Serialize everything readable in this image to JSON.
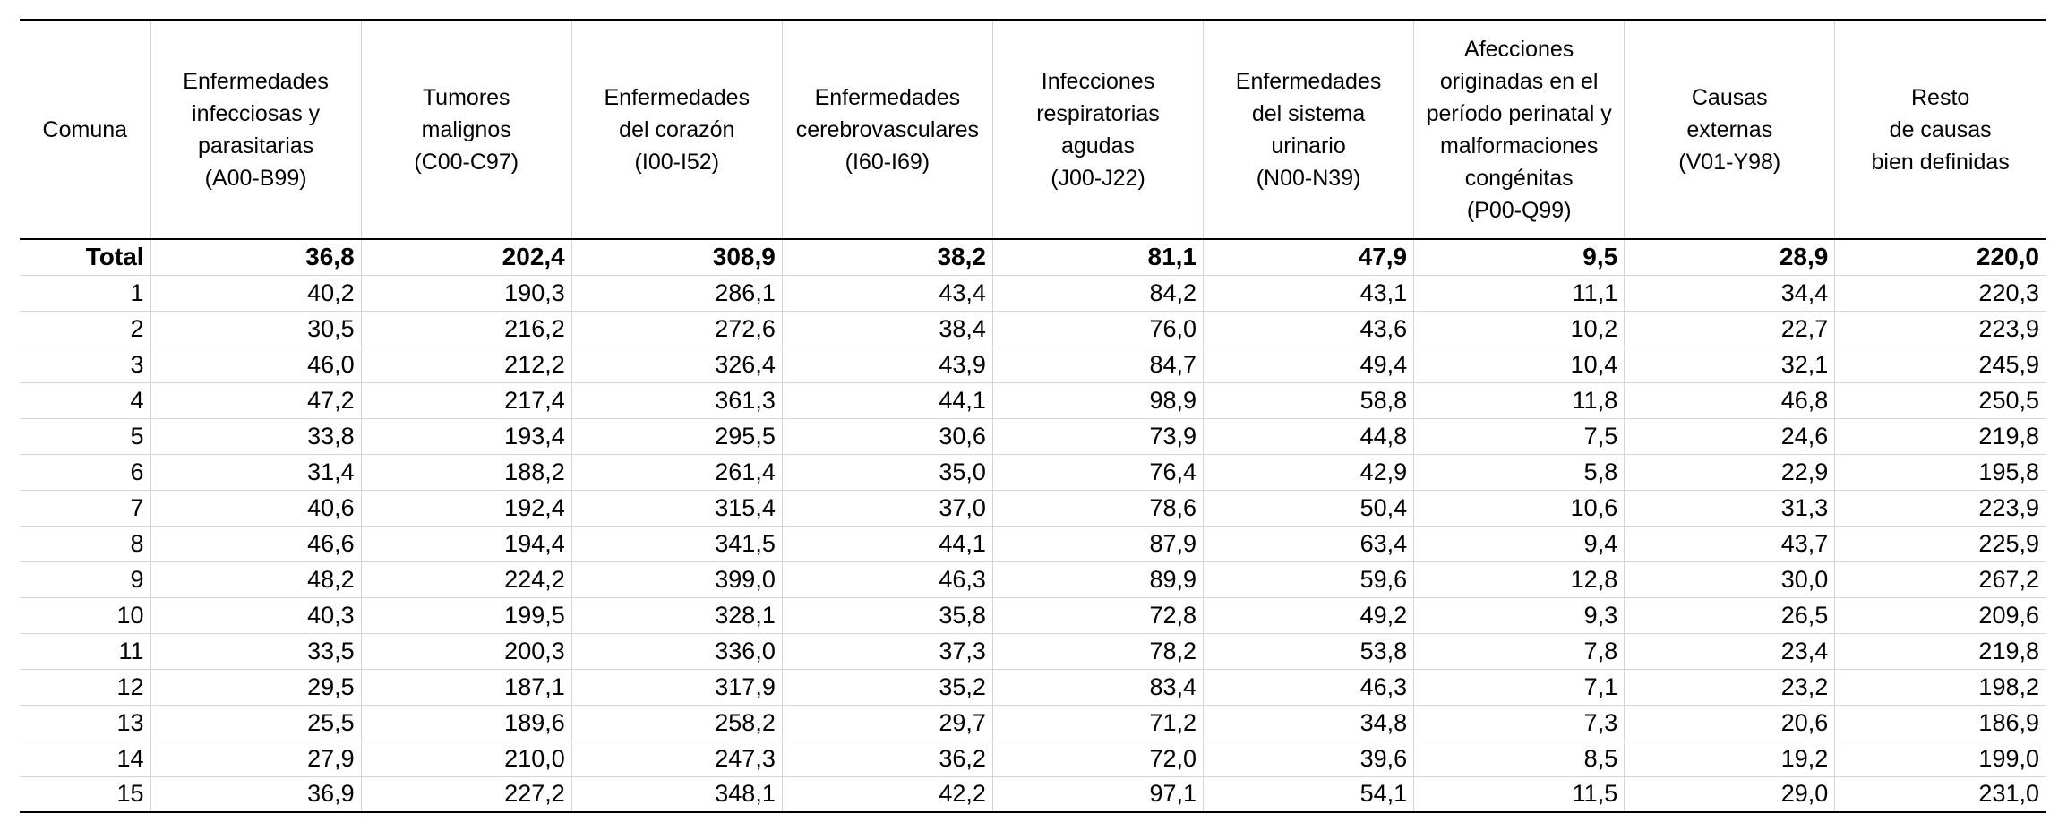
{
  "table": {
    "headers": [
      "Comuna",
      "Enfermedades\ninfecciosas y\nparasitarias\n(A00-B99)",
      "Tumores\nmalignos\n(C00-C97)",
      "Enfermedades\ndel corazón\n(I00-I52)",
      "Enfermedades\ncerebrovasculares\n(I60-I69)",
      "Infecciones\nrespiratorias\nagudas\n(J00-J22)",
      "Enfermedades\ndel sistema\nurinario\n(N00-N39)",
      "Afecciones\noriginadas en el\nperíodo perinatal y\nmalformaciones\ncongénitas\n(P00-Q99)",
      "Causas\nexternas\n(V01-Y98)",
      "Resto\nde causas\nbien definidas"
    ],
    "total_row": [
      "Total",
      "36,8",
      "202,4",
      "308,9",
      "38,2",
      "81,1",
      "47,9",
      "9,5",
      "28,9",
      "220,0"
    ],
    "rows": [
      [
        "1",
        "40,2",
        "190,3",
        "286,1",
        "43,4",
        "84,2",
        "43,1",
        "11,1",
        "34,4",
        "220,3"
      ],
      [
        "2",
        "30,5",
        "216,2",
        "272,6",
        "38,4",
        "76,0",
        "43,6",
        "10,2",
        "22,7",
        "223,9"
      ],
      [
        "3",
        "46,0",
        "212,2",
        "326,4",
        "43,9",
        "84,7",
        "49,4",
        "10,4",
        "32,1",
        "245,9"
      ],
      [
        "4",
        "47,2",
        "217,4",
        "361,3",
        "44,1",
        "98,9",
        "58,8",
        "11,8",
        "46,8",
        "250,5"
      ],
      [
        "5",
        "33,8",
        "193,4",
        "295,5",
        "30,6",
        "73,9",
        "44,8",
        "7,5",
        "24,6",
        "219,8"
      ],
      [
        "6",
        "31,4",
        "188,2",
        "261,4",
        "35,0",
        "76,4",
        "42,9",
        "5,8",
        "22,9",
        "195,8"
      ],
      [
        "7",
        "40,6",
        "192,4",
        "315,4",
        "37,0",
        "78,6",
        "50,4",
        "10,6",
        "31,3",
        "223,9"
      ],
      [
        "8",
        "46,6",
        "194,4",
        "341,5",
        "44,1",
        "87,9",
        "63,4",
        "9,4",
        "43,7",
        "225,9"
      ],
      [
        "9",
        "48,2",
        "224,2",
        "399,0",
        "46,3",
        "89,9",
        "59,6",
        "12,8",
        "30,0",
        "267,2"
      ],
      [
        "10",
        "40,3",
        "199,5",
        "328,1",
        "35,8",
        "72,8",
        "49,2",
        "9,3",
        "26,5",
        "209,6"
      ],
      [
        "11",
        "33,5",
        "200,3",
        "336,0",
        "37,3",
        "78,2",
        "53,8",
        "7,8",
        "23,4",
        "219,8"
      ],
      [
        "12",
        "29,5",
        "187,1",
        "317,9",
        "35,2",
        "83,4",
        "46,3",
        "7,1",
        "23,2",
        "198,2"
      ],
      [
        "13",
        "25,5",
        "189,6",
        "258,2",
        "29,7",
        "71,2",
        "34,8",
        "7,3",
        "20,6",
        "186,9"
      ],
      [
        "14",
        "27,9",
        "210,0",
        "247,3",
        "36,2",
        "72,0",
        "39,6",
        "8,5",
        "19,2",
        "199,0"
      ],
      [
        "15",
        "36,9",
        "227,2",
        "348,1",
        "42,2",
        "97,1",
        "54,1",
        "11,5",
        "29,0",
        "231,0"
      ]
    ]
  },
  "colors": {
    "rule_dark": "#000000",
    "rule_light": "#d4d4d4",
    "background": "#ffffff"
  }
}
